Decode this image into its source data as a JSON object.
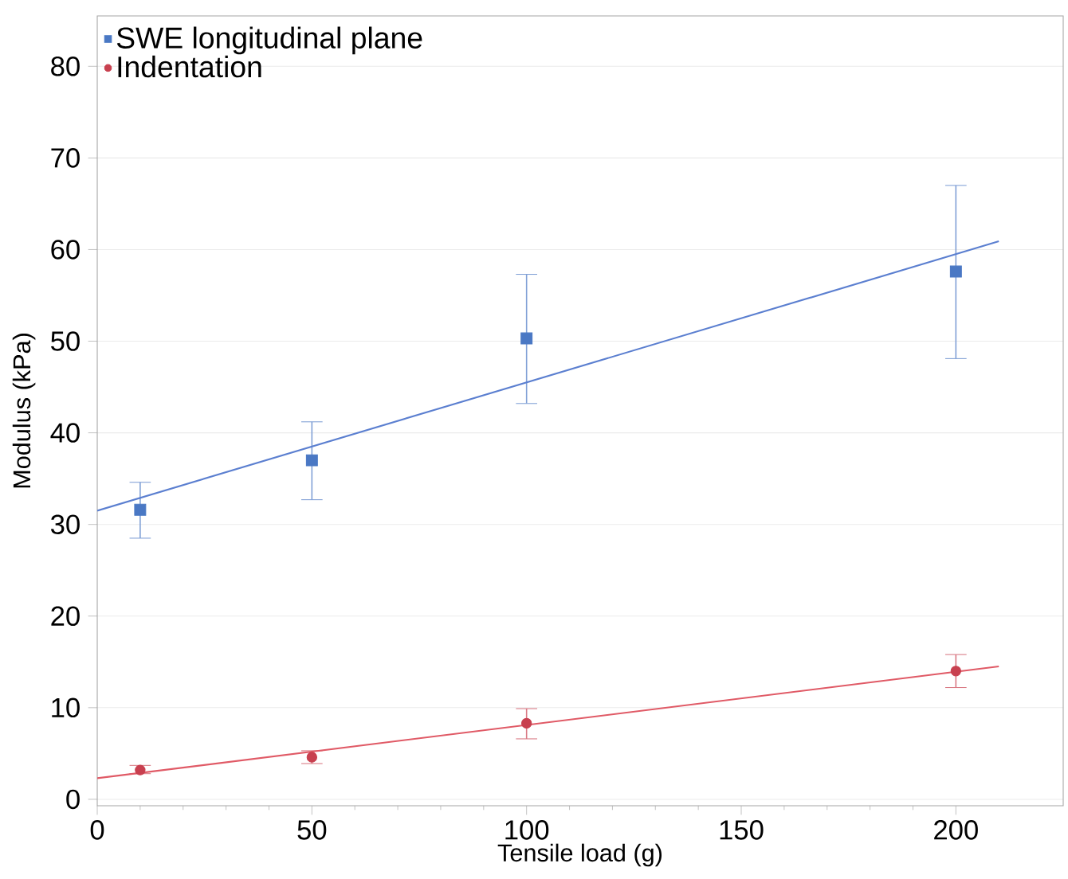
{
  "chart_data": {
    "type": "scatter",
    "xlabel": "Tensile load (g)",
    "ylabel": "Modulus (kPa)",
    "xlim": [
      0,
      225
    ],
    "ylim": [
      -0.7,
      85.5
    ],
    "xticks": [
      0,
      50,
      100,
      150,
      200
    ],
    "yticks": [
      0,
      10,
      20,
      30,
      40,
      50,
      60,
      70,
      80
    ],
    "grid": "y",
    "legend": "top left",
    "series": [
      {
        "name": "SWE longitudinal plane",
        "marker": "square",
        "color": "#4a78c4",
        "x": [
          10,
          50,
          100,
          200
        ],
        "values": [
          31.6,
          37,
          50.3,
          57.6
        ],
        "errors": [
          [
            28.5,
            34.6
          ],
          [
            32.7,
            41.2
          ],
          [
            43.2,
            57.3
          ],
          [
            48.1,
            67.0
          ]
        ]
      },
      {
        "name": "Indentation",
        "marker": "circle",
        "color": "#c8404f",
        "x": [
          10,
          50,
          100,
          200
        ],
        "values": [
          3.2,
          4.6,
          8.3,
          14.0
        ],
        "errors": [
          [
            2.8,
            3.7
          ],
          [
            3.9,
            5.3
          ],
          [
            6.6,
            9.9
          ],
          [
            12.2,
            15.8
          ]
        ]
      },
      {
        "type": "line",
        "color": "#5b7fd0",
        "x": [
          0,
          210
        ],
        "values": [
          31.5,
          60.9
        ]
      },
      {
        "type": "line",
        "color": "#e05a66",
        "x": [
          0,
          210
        ],
        "values": [
          2.3,
          14.5
        ]
      }
    ]
  }
}
